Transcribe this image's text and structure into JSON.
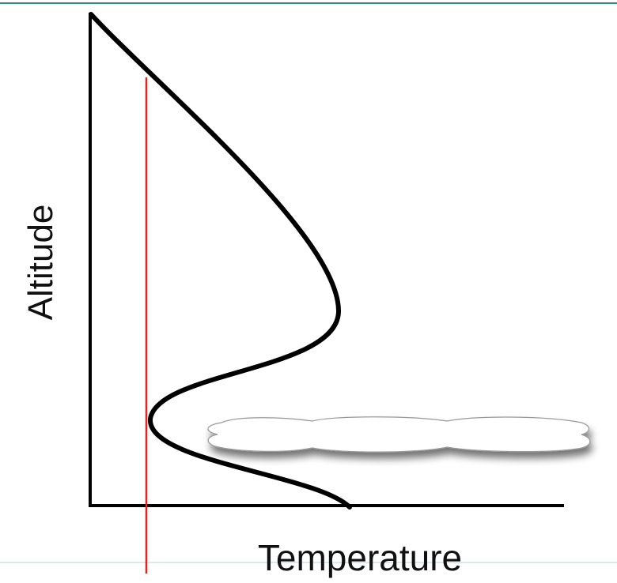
{
  "axes": {
    "y_label": "Altitude",
    "x_label": "Temperature"
  }
}
